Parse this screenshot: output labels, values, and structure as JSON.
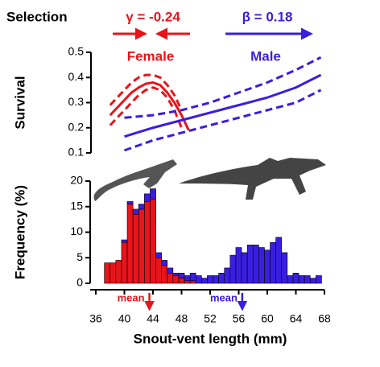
{
  "chart_data": [
    {
      "type": "line",
      "header": "Selection",
      "ylabel": "Survival",
      "xlim": [
        36,
        68
      ],
      "ylim": [
        0.1,
        0.5
      ],
      "yticks": [
        0.1,
        0.2,
        0.3,
        0.4,
        0.5
      ],
      "annotations": [
        {
          "text": "γ = -0.24",
          "color": "#e8141b",
          "arrows": "inward"
        },
        {
          "text": "β = 0.18",
          "color": "#3a1ee0",
          "arrows": "right"
        }
      ],
      "series": [
        {
          "name": "Female",
          "color": "#e8141b",
          "style": "solid",
          "x": [
            38,
            39,
            40,
            41,
            42,
            43,
            44,
            45,
            46,
            47,
            48,
            49
          ],
          "values": [
            0.25,
            0.28,
            0.31,
            0.34,
            0.36,
            0.375,
            0.38,
            0.37,
            0.34,
            0.3,
            0.25,
            0.19
          ]
        },
        {
          "color": "#e8141b",
          "style": "dashed",
          "x": [
            38,
            39,
            40,
            41,
            42,
            43,
            44,
            45,
            46,
            47,
            48
          ],
          "values": [
            0.29,
            0.32,
            0.35,
            0.38,
            0.4,
            0.41,
            0.41,
            0.4,
            0.37,
            0.33,
            0.27
          ]
        },
        {
          "color": "#e8141b",
          "style": "dashed",
          "x": [
            38,
            39,
            40,
            41,
            42,
            43,
            44,
            45,
            46,
            47,
            48
          ],
          "values": [
            0.21,
            0.24,
            0.27,
            0.3,
            0.33,
            0.35,
            0.36,
            0.35,
            0.32,
            0.27,
            0.2
          ]
        },
        {
          "name": "Male",
          "color": "#3a1ee0",
          "style": "solid",
          "x": [
            40,
            44,
            48,
            52,
            56,
            60,
            64,
            67.5
          ],
          "values": [
            0.165,
            0.2,
            0.23,
            0.26,
            0.29,
            0.32,
            0.36,
            0.41
          ]
        },
        {
          "color": "#3a1ee0",
          "style": "dashed",
          "x": [
            40,
            44,
            48,
            52,
            56,
            60,
            64,
            67.5
          ],
          "values": [
            0.24,
            0.25,
            0.27,
            0.3,
            0.34,
            0.38,
            0.43,
            0.48
          ]
        },
        {
          "color": "#3a1ee0",
          "style": "dashed",
          "x": [
            40,
            44,
            48,
            52,
            56,
            60,
            64,
            67.5
          ],
          "values": [
            0.11,
            0.15,
            0.18,
            0.21,
            0.24,
            0.27,
            0.3,
            0.35
          ]
        }
      ]
    },
    {
      "type": "histogram",
      "stacked": true,
      "ylabel": "Frequency (%)",
      "xlabel": "Snout-vent length (mm)",
      "xlim": [
        36,
        68
      ],
      "ylim": [
        0,
        20
      ],
      "xticks": [
        36,
        40,
        44,
        48,
        52,
        56,
        60,
        64,
        68
      ],
      "yticks": [
        0,
        5,
        10,
        15,
        20
      ],
      "bins": [
        37.2,
        38.0,
        38.8,
        39.6,
        40.4,
        41.2,
        42.0,
        42.8,
        43.6,
        44.4,
        45.2,
        46.0,
        46.8,
        47.6,
        48.4,
        49.2,
        50.0,
        50.8,
        51.6,
        52.4,
        53.2,
        54.0,
        54.8,
        55.6,
        56.4,
        57.2,
        58.0,
        58.8,
        59.6,
        60.4,
        61.2,
        62.0,
        62.8,
        63.6,
        64.4,
        65.2,
        66.0,
        66.8,
        67.6
      ],
      "series": [
        {
          "color": "#e8141b",
          "mean_label": "mean",
          "mean": 43.5,
          "values": [
            4,
            4,
            4.5,
            8,
            15.5,
            13.5,
            14.5,
            16,
            16.5,
            5,
            3.5,
            2,
            1.5,
            1,
            0.5,
            0.5,
            0,
            0,
            0,
            0,
            0,
            0,
            0,
            0,
            0,
            0,
            0,
            0,
            0,
            0,
            0,
            0,
            0,
            0,
            0,
            0,
            0,
            0
          ]
        },
        {
          "color": "#3a1ee0",
          "mean_label": "mean",
          "mean": 56.5,
          "values": [
            0,
            0,
            0,
            0.5,
            0.5,
            1,
            1,
            1.5,
            2,
            1,
            1,
            1,
            0.5,
            1,
            1,
            1.5,
            1.5,
            1,
            1.5,
            1.5,
            2,
            3,
            5.5,
            7,
            6,
            7.5,
            7.5,
            7,
            6.5,
            8,
            9,
            6,
            1.5,
            2,
            1.5,
            1.5,
            1,
            1.5
          ]
        }
      ]
    }
  ]
}
